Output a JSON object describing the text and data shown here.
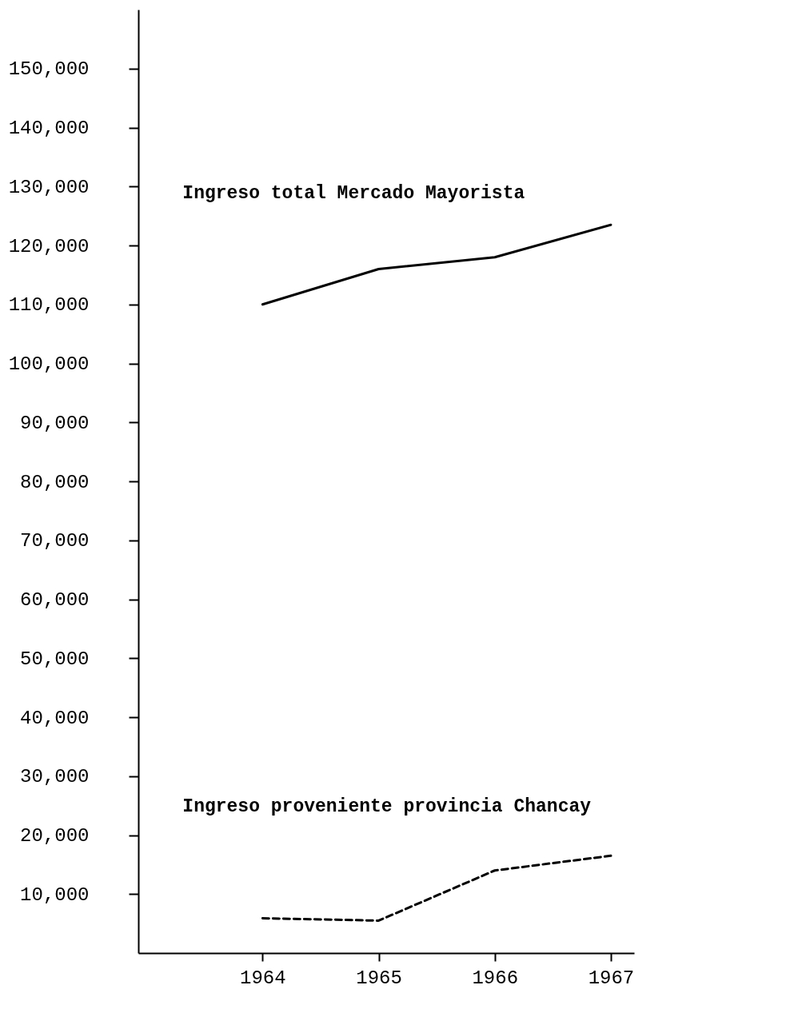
{
  "chart_data": {
    "type": "line",
    "x": [
      1964,
      1965,
      1966,
      1967
    ],
    "xlim": [
      1962.93,
      1967.2
    ],
    "xticks": [
      1964,
      1965,
      1966,
      1967
    ],
    "ylim": [
      0,
      160000
    ],
    "yticks": [
      {
        "value": 10000,
        "label": "10,000"
      },
      {
        "value": 20000,
        "label": "20,000"
      },
      {
        "value": 30000,
        "label": "30,000"
      },
      {
        "value": 40000,
        "label": "40,000"
      },
      {
        "value": 50000,
        "label": "50,000"
      },
      {
        "value": 60000,
        "label": "60,000"
      },
      {
        "value": 70000,
        "label": "70,000"
      },
      {
        "value": 80000,
        "label": "80,000"
      },
      {
        "value": 90000,
        "label": "90,000"
      },
      {
        "value": 100000,
        "label": "100,000"
      },
      {
        "value": 110000,
        "label": "110,000"
      },
      {
        "value": 120000,
        "label": "120,000"
      },
      {
        "value": 130000,
        "label": "130,000"
      },
      {
        "value": 140000,
        "label": "140,000"
      },
      {
        "value": 150000,
        "label": "150,000"
      }
    ],
    "grid": false,
    "marker": "none",
    "series": [
      {
        "name": "Ingreso total Mercado Mayorista",
        "color": "#000000",
        "line_style": "solid",
        "values": [
          110000,
          116000,
          118000,
          123500
        ]
      },
      {
        "name": "Ingreso proveniente provincia Chancay",
        "color": "#000000",
        "line_style": "dashed",
        "values": [
          5900,
          5500,
          14000,
          16500
        ]
      }
    ]
  }
}
